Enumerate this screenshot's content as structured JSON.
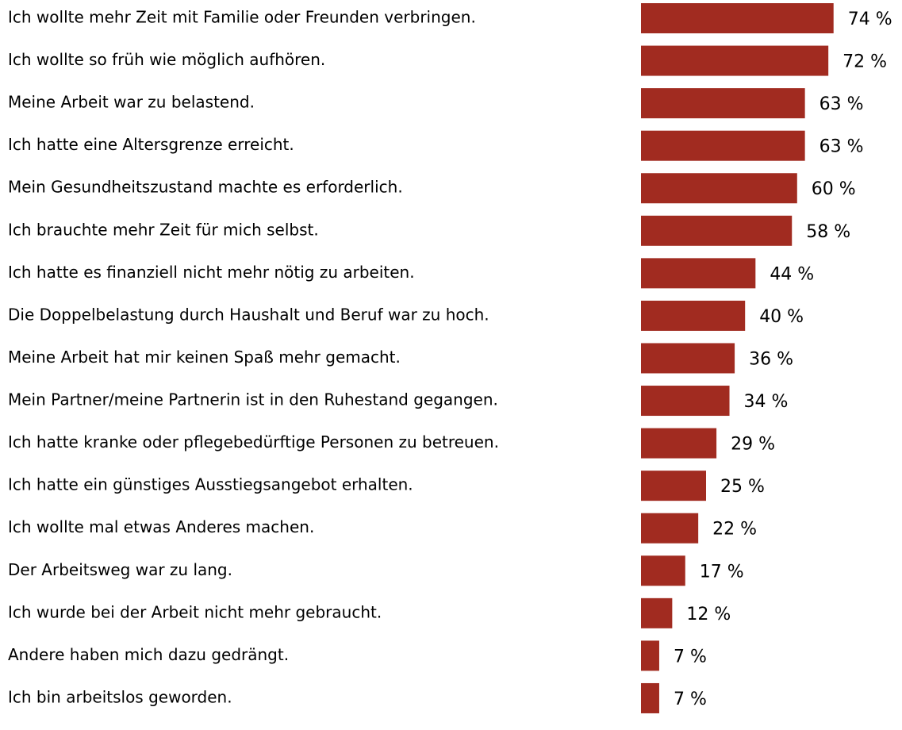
{
  "chart_data": {
    "type": "bar",
    "orientation": "horizontal",
    "color": "#a12b20",
    "categories": [
      "Ich wollte mehr Zeit mit Familie oder Freunden verbringen.",
      "Ich wollte so früh wie möglich aufhören.",
      "Meine Arbeit war zu belastend.",
      "Ich hatte eine Altersgrenze erreicht.",
      "Mein Gesundheitszustand machte es erforderlich.",
      "Ich brauchte mehr Zeit für mich selbst.",
      "Ich hatte es finanziell nicht mehr nötig zu arbeiten.",
      "Die Doppelbelastung durch Haushalt und Beruf war zu hoch.",
      "Meine Arbeit hat mir keinen Spaß mehr gemacht.",
      "Mein Partner/meine Partnerin ist in den Ruhestand gegangen.",
      "Ich hatte kranke oder pflegebedürftige Personen zu betreuen.",
      "Ich hatte ein günstiges Ausstiegsangebot erhalten.",
      "Ich wollte mal etwas Anderes machen.",
      "Der Arbeitsweg war zu lang.",
      "Ich wurde bei der Arbeit nicht mehr gebraucht.",
      "Andere haben mich dazu gedrängt.",
      "Ich bin arbeitslos geworden."
    ],
    "values": [
      74,
      72,
      63,
      63,
      60,
      58,
      44,
      40,
      36,
      34,
      29,
      25,
      22,
      17,
      12,
      7,
      7
    ],
    "value_labels": [
      "74 %",
      "72 %",
      "63 %",
      "63 %",
      "60 %",
      "58 %",
      "44 %",
      "40 %",
      "36 %",
      "34 %",
      "29 %",
      "25 %",
      "22 %",
      "17 %",
      "12 %",
      "7 %",
      "7 %"
    ]
  }
}
